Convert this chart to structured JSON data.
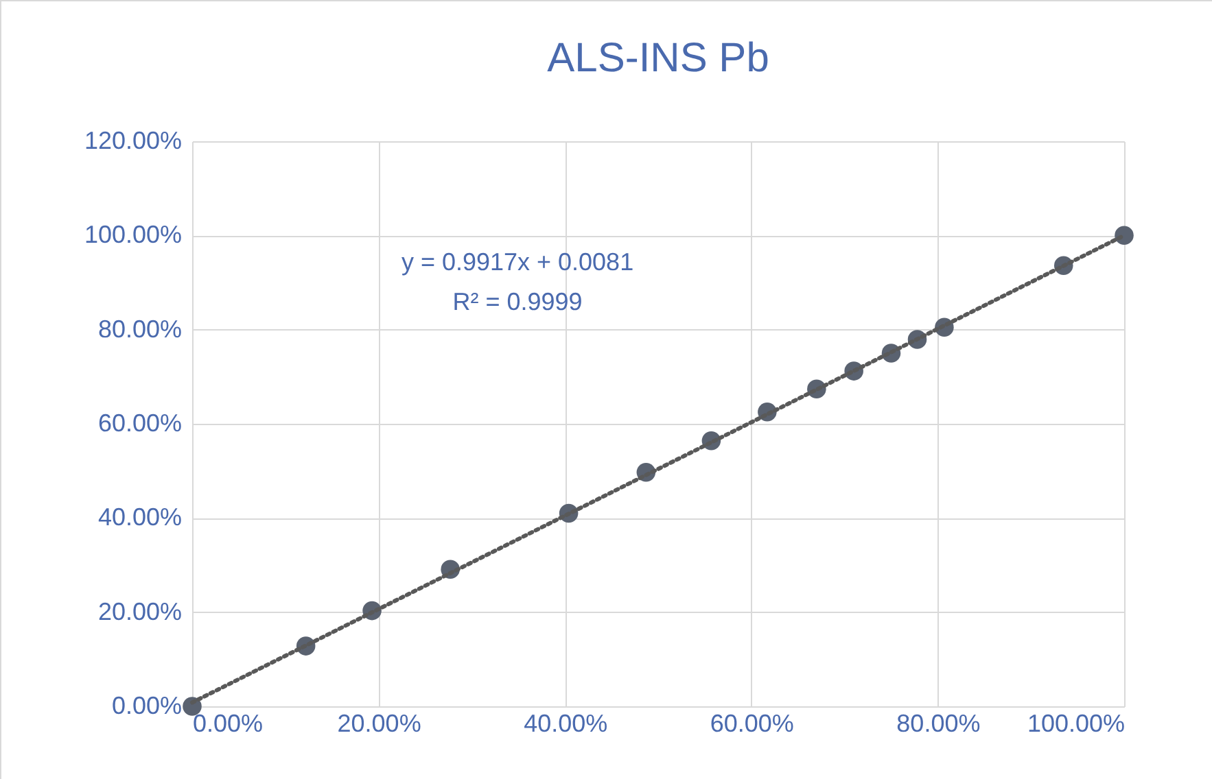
{
  "chart_data": {
    "type": "scatter",
    "title": "ALS-INS Pb",
    "xlim": [
      0,
      100
    ],
    "ylim": [
      0,
      120
    ],
    "xticks": [
      {
        "value": 0,
        "label": "0.00%"
      },
      {
        "value": 20,
        "label": "20.00%"
      },
      {
        "value": 40,
        "label": "40.00%"
      },
      {
        "value": 60,
        "label": "60.00%"
      },
      {
        "value": 80,
        "label": "80.00%"
      },
      {
        "value": 100,
        "label": "100.00%"
      }
    ],
    "yticks": [
      {
        "value": 0,
        "label": "0.00%"
      },
      {
        "value": 20,
        "label": "20.00%"
      },
      {
        "value": 40,
        "label": "40.00%"
      },
      {
        "value": 60,
        "label": "60.00%"
      },
      {
        "value": 80,
        "label": "80.00%"
      },
      {
        "value": 100,
        "label": "100.00%"
      },
      {
        "value": 120,
        "label": "120.00%"
      }
    ],
    "grid": true,
    "annotations": [
      "y = 0.9917x + 0.0081",
      "R² = 0.9999"
    ],
    "series": [
      {
        "color": "#5a6270",
        "marker": "circle",
        "x": [
          0,
          12.2,
          19.3,
          27.7,
          40.4,
          48.7,
          55.7,
          61.7,
          67.0,
          71.0,
          75.0,
          77.8,
          80.7,
          93.5,
          100
        ],
        "values": [
          0,
          12.8,
          20.3,
          29.1,
          41.0,
          49.7,
          56.4,
          62.5,
          67.4,
          71.2,
          75.0,
          77.9,
          80.5,
          93.6,
          100
        ]
      },
      {
        "type": "line",
        "color": "#595959",
        "line_style": "dotted",
        "marker": "none",
        "x": [
          0,
          100
        ],
        "values": [
          0.8,
          100.0
        ]
      }
    ]
  }
}
